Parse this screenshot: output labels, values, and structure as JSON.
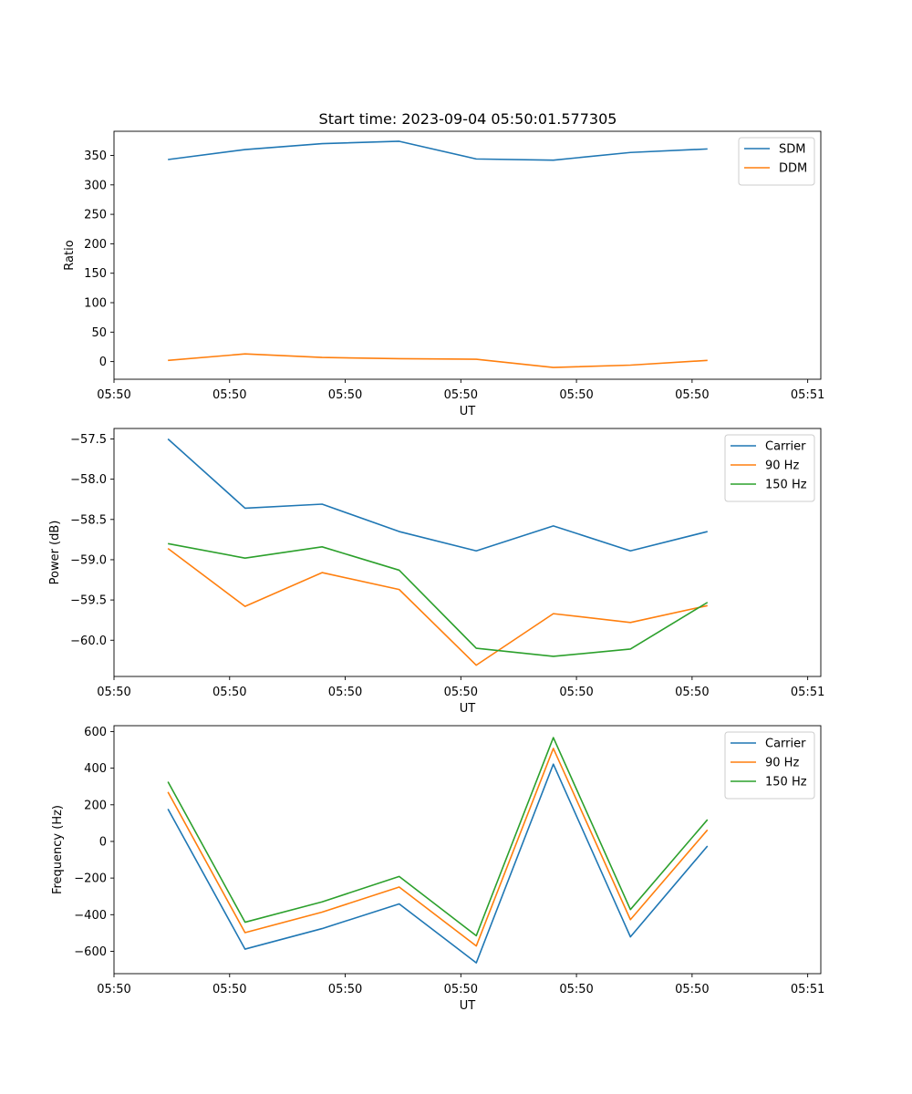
{
  "title": "Start time: 2023-09-04 05:50:01.577305",
  "colors": {
    "blue": "#1f77b4",
    "orange": "#ff7f0e",
    "green": "#2ca02c"
  },
  "chart_data": [
    {
      "type": "line",
      "title": "Start time: 2023-09-04 05:50:01.577305",
      "xlabel": "UT",
      "ylabel": "Ratio",
      "xlim": [
        -0.7,
        8.47
      ],
      "ylim": [
        -30,
        391
      ],
      "x": [
        0,
        1,
        2,
        3,
        4,
        5,
        6,
        7
      ],
      "x_ticks": [
        -0.7,
        0.8,
        2.3,
        3.8,
        5.3,
        6.8,
        8.3
      ],
      "x_tick_labels": [
        "05:50",
        "05:50",
        "05:50",
        "05:50",
        "05:50",
        "05:50",
        "05:51"
      ],
      "y_ticks": [
        0,
        50,
        100,
        150,
        200,
        250,
        300,
        350
      ],
      "y_tick_labels": [
        "0",
        "50",
        "100",
        "150",
        "200",
        "250",
        "300",
        "350"
      ],
      "legend_position": "top-right",
      "series": [
        {
          "name": "SDM",
          "color": "#1f77b4",
          "values": [
            343,
            360,
            370,
            374,
            344,
            342,
            355,
            361
          ]
        },
        {
          "name": "DDM",
          "color": "#ff7f0e",
          "values": [
            2,
            13,
            7,
            5,
            4,
            -10,
            -6,
            2
          ]
        }
      ]
    },
    {
      "type": "line",
      "xlabel": "UT",
      "ylabel": "Power (dB)",
      "xlim": [
        -0.7,
        8.47
      ],
      "ylim": [
        -60.45,
        -57.37
      ],
      "x": [
        0,
        1,
        2,
        3,
        4,
        5,
        6,
        7
      ],
      "x_ticks": [
        -0.7,
        0.8,
        2.3,
        3.8,
        5.3,
        6.8,
        8.3
      ],
      "x_tick_labels": [
        "05:50",
        "05:50",
        "05:50",
        "05:50",
        "05:50",
        "05:50",
        "05:51"
      ],
      "y_ticks": [
        -60.0,
        -59.5,
        -59.0,
        -58.5,
        -58.0,
        -57.5
      ],
      "y_tick_labels": [
        "−60.0",
        "−59.5",
        "−59.0",
        "−58.5",
        "−58.0",
        "−57.5"
      ],
      "legend_position": "top-right",
      "series": [
        {
          "name": "Carrier",
          "color": "#1f77b4",
          "values": [
            -57.5,
            -58.36,
            -58.31,
            -58.65,
            -58.89,
            -58.58,
            -58.89,
            -58.65
          ]
        },
        {
          "name": "90 Hz",
          "color": "#ff7f0e",
          "values": [
            -58.86,
            -59.58,
            -59.16,
            -59.37,
            -60.31,
            -59.67,
            -59.78,
            -59.57
          ]
        },
        {
          "name": "150 Hz",
          "color": "#2ca02c",
          "values": [
            -58.8,
            -58.98,
            -58.84,
            -59.13,
            -60.1,
            -60.2,
            -60.11,
            -59.53
          ]
        }
      ]
    },
    {
      "type": "line",
      "xlabel": "UT",
      "ylabel": "Frequency (Hz)",
      "xlim": [
        -0.7,
        8.47
      ],
      "ylim": [
        -722,
        632
      ],
      "x": [
        0,
        1,
        2,
        3,
        4,
        5,
        6,
        7
      ],
      "x_ticks": [
        -0.7,
        0.8,
        2.3,
        3.8,
        5.3,
        6.8,
        8.3
      ],
      "x_tick_labels": [
        "05:50",
        "05:50",
        "05:50",
        "05:50",
        "05:50",
        "05:50",
        "05:51"
      ],
      "y_ticks": [
        -600,
        -400,
        -200,
        0,
        200,
        400,
        600
      ],
      "y_tick_labels": [
        "−600",
        "−400",
        "−200",
        "0",
        "200",
        "400",
        "600"
      ],
      "legend_position": "top-right",
      "series": [
        {
          "name": "Carrier",
          "color": "#1f77b4",
          "values": [
            177,
            -588,
            -476,
            -341,
            -663,
            422,
            -521,
            -25
          ]
        },
        {
          "name": "90 Hz",
          "color": "#ff7f0e",
          "values": [
            270,
            -498,
            -386,
            -249,
            -571,
            508,
            -427,
            63
          ]
        },
        {
          "name": "150 Hz",
          "color": "#2ca02c",
          "values": [
            326,
            -441,
            -330,
            -191,
            -515,
            567,
            -372,
            119
          ]
        }
      ]
    }
  ]
}
